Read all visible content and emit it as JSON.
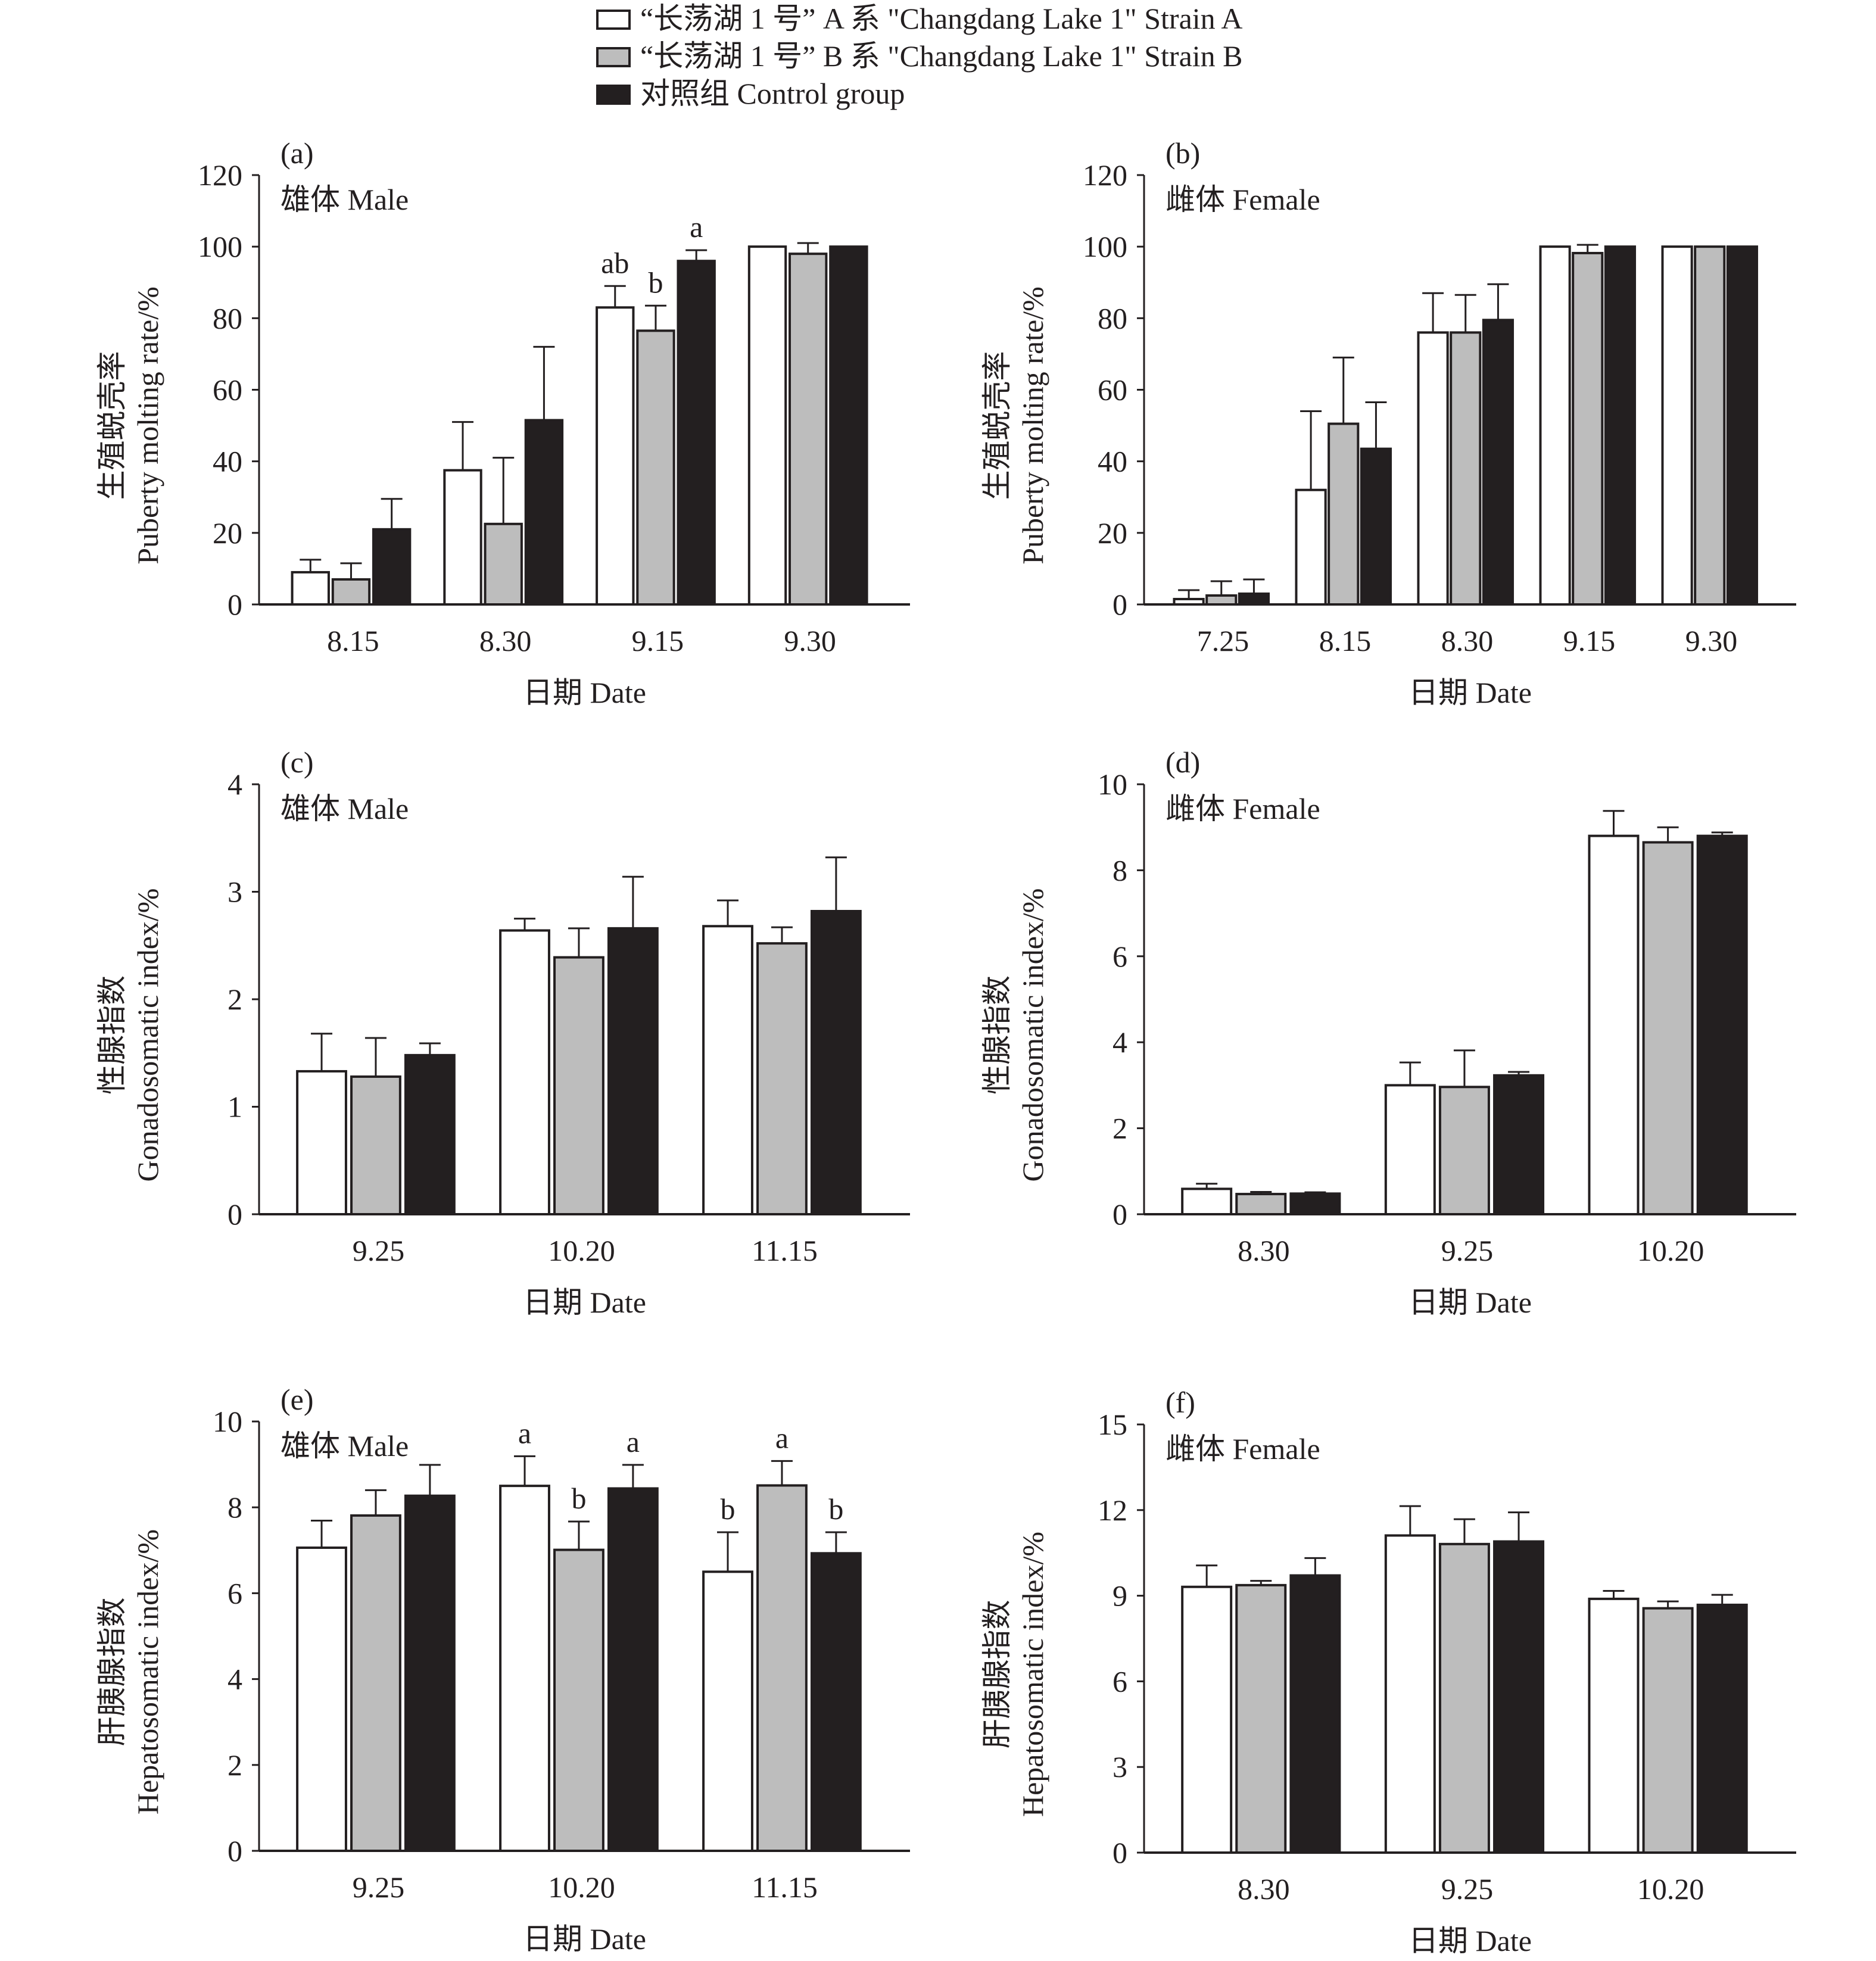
{
  "legend": {
    "items": [
      {
        "label": "“长荡湖 1 号” A 系 \"Changdang Lake 1\" Strain A",
        "color": "#ffffff"
      },
      {
        "label": "“长荡湖 1 号” B 系 \"Changdang Lake 1\" Strain B",
        "color": "#bdbdbd"
      },
      {
        "label": "对照组 Control group",
        "color": "#231f20"
      }
    ]
  },
  "chart_data": [
    {
      "type": "bar",
      "panel": "(a)",
      "title": "雄体 Male",
      "xlabel": "日期 Date",
      "ylabel": [
        "生殖蜕壳率",
        "Puberty molting rate/%"
      ],
      "ylim": [
        0,
        120
      ],
      "yticks": [
        0,
        20,
        40,
        60,
        80,
        100,
        120
      ],
      "categories": [
        "8.15",
        "8.30",
        "9.15",
        "9.30"
      ],
      "series": [
        {
          "name": "Strain A",
          "values": [
            9,
            37.5,
            83,
            100
          ],
          "errors": [
            3.5,
            13.5,
            6,
            0
          ],
          "labels": [
            "",
            "",
            "ab",
            ""
          ]
        },
        {
          "name": "Strain B",
          "values": [
            7,
            22.5,
            76.5,
            98
          ],
          "errors": [
            4.5,
            18.5,
            7,
            3
          ],
          "labels": [
            "",
            "",
            "b",
            ""
          ]
        },
        {
          "name": "Control group",
          "values": [
            21,
            51.5,
            96,
            100
          ],
          "errors": [
            8.5,
            20.5,
            3,
            0
          ],
          "labels": [
            "",
            "",
            "a",
            ""
          ]
        }
      ]
    },
    {
      "type": "bar",
      "panel": "(b)",
      "title": "雌体 Female",
      "xlabel": "日期 Date",
      "ylabel": [
        "生殖蜕壳率",
        "Puberty molting rate/%"
      ],
      "ylim": [
        0,
        120
      ],
      "yticks": [
        0,
        20,
        40,
        60,
        80,
        100,
        120
      ],
      "categories": [
        "7.25",
        "8.15",
        "8.30",
        "9.15",
        "9.30"
      ],
      "series": [
        {
          "name": "Strain A",
          "values": [
            1.5,
            32,
            76,
            100,
            100
          ],
          "errors": [
            2.5,
            22,
            11,
            0,
            0
          ],
          "labels": [
            "",
            "",
            "",
            "",
            ""
          ]
        },
        {
          "name": "Strain B",
          "values": [
            2.5,
            50.5,
            76,
            98.2,
            100
          ],
          "errors": [
            4,
            18.5,
            10.5,
            2.3,
            0
          ],
          "labels": [
            "",
            "",
            "",
            "",
            ""
          ]
        },
        {
          "name": "Control group",
          "values": [
            3,
            43.5,
            79.5,
            100,
            100
          ],
          "errors": [
            4,
            13,
            10,
            0,
            0
          ],
          "labels": [
            "",
            "",
            "",
            "",
            ""
          ]
        }
      ]
    },
    {
      "type": "bar",
      "panel": "(c)",
      "title": "雄体 Male",
      "xlabel": "日期 Date",
      "ylabel": [
        "性腺指数",
        "Gonadosomatic index/%"
      ],
      "ylim": [
        0,
        4
      ],
      "yticks": [
        0,
        1,
        2,
        3,
        4
      ],
      "categories": [
        "9.25",
        "10.20",
        "11.15"
      ],
      "series": [
        {
          "name": "Strain A",
          "values": [
            1.33,
            2.64,
            2.68
          ],
          "errors": [
            0.35,
            0.11,
            0.24
          ],
          "labels": [
            "",
            "",
            ""
          ]
        },
        {
          "name": "Strain B",
          "values": [
            1.28,
            2.39,
            2.52
          ],
          "errors": [
            0.36,
            0.27,
            0.15
          ],
          "labels": [
            "",
            "",
            ""
          ]
        },
        {
          "name": "Control group",
          "values": [
            1.48,
            2.66,
            2.82
          ],
          "errors": [
            0.11,
            0.48,
            0.5
          ],
          "labels": [
            "",
            "",
            ""
          ]
        }
      ]
    },
    {
      "type": "bar",
      "panel": "(d)",
      "title": "雌体 Female",
      "xlabel": "日期 Date",
      "ylabel": [
        "性腺指数",
        "Gonadosomatic index/%"
      ],
      "ylim": [
        0,
        10
      ],
      "yticks": [
        0,
        2,
        4,
        6,
        8,
        10
      ],
      "categories": [
        "8.30",
        "9.25",
        "10.20"
      ],
      "series": [
        {
          "name": "Strain A",
          "values": [
            0.59,
            3.0,
            8.8
          ],
          "errors": [
            0.12,
            0.53,
            0.58
          ],
          "labels": [
            "",
            "",
            ""
          ]
        },
        {
          "name": "Strain B",
          "values": [
            0.47,
            2.96,
            8.65
          ],
          "errors": [
            0.05,
            0.85,
            0.35
          ],
          "labels": [
            "",
            "",
            ""
          ]
        },
        {
          "name": "Control group",
          "values": [
            0.48,
            3.23,
            8.8
          ],
          "errors": [
            0.03,
            0.08,
            0.08
          ],
          "labels": [
            "",
            "",
            ""
          ]
        }
      ]
    },
    {
      "type": "bar",
      "panel": "(e)",
      "title": "雄体 Male",
      "xlabel": "日期 Date",
      "ylabel": [
        "肝胰腺指数",
        "Hepatosomatic index/%"
      ],
      "ylim": [
        0,
        10
      ],
      "yticks": [
        0,
        2,
        4,
        6,
        8,
        10
      ],
      "categories": [
        "9.25",
        "10.20",
        "11.15"
      ],
      "series": [
        {
          "name": "Strain A",
          "values": [
            7.06,
            8.5,
            6.5
          ],
          "errors": [
            0.63,
            0.69,
            0.92
          ],
          "labels": [
            "",
            "a",
            "b"
          ]
        },
        {
          "name": "Strain B",
          "values": [
            7.81,
            7.01,
            8.51
          ],
          "errors": [
            0.59,
            0.66,
            0.57
          ],
          "labels": [
            "",
            "b",
            "a"
          ]
        },
        {
          "name": "Control group",
          "values": [
            8.27,
            8.44,
            6.93
          ],
          "errors": [
            0.72,
            0.55,
            0.49
          ],
          "labels": [
            "",
            "a",
            "b"
          ]
        }
      ]
    },
    {
      "type": "bar",
      "panel": "(f)",
      "title": "雌体 Female",
      "xlabel": "日期 Date",
      "ylabel": [
        "肝胰腺指数",
        "Hepatosomatic index/%"
      ],
      "ylim": [
        0,
        15
      ],
      "yticks": [
        0,
        3,
        6,
        9,
        12,
        15
      ],
      "categories": [
        "8.30",
        "9.25",
        "10.20"
      ],
      "series": [
        {
          "name": "Strain A",
          "values": [
            9.31,
            11.11,
            8.89
          ],
          "errors": [
            0.75,
            1.03,
            0.28
          ],
          "labels": [
            "",
            "",
            ""
          ]
        },
        {
          "name": "Strain B",
          "values": [
            9.37,
            10.81,
            8.56
          ],
          "errors": [
            0.15,
            0.87,
            0.24
          ],
          "labels": [
            "",
            "",
            ""
          ]
        },
        {
          "name": "Control group",
          "values": [
            9.71,
            10.9,
            8.68
          ],
          "errors": [
            0.61,
            1.02,
            0.35
          ],
          "labels": [
            "",
            "",
            ""
          ]
        }
      ]
    }
  ]
}
